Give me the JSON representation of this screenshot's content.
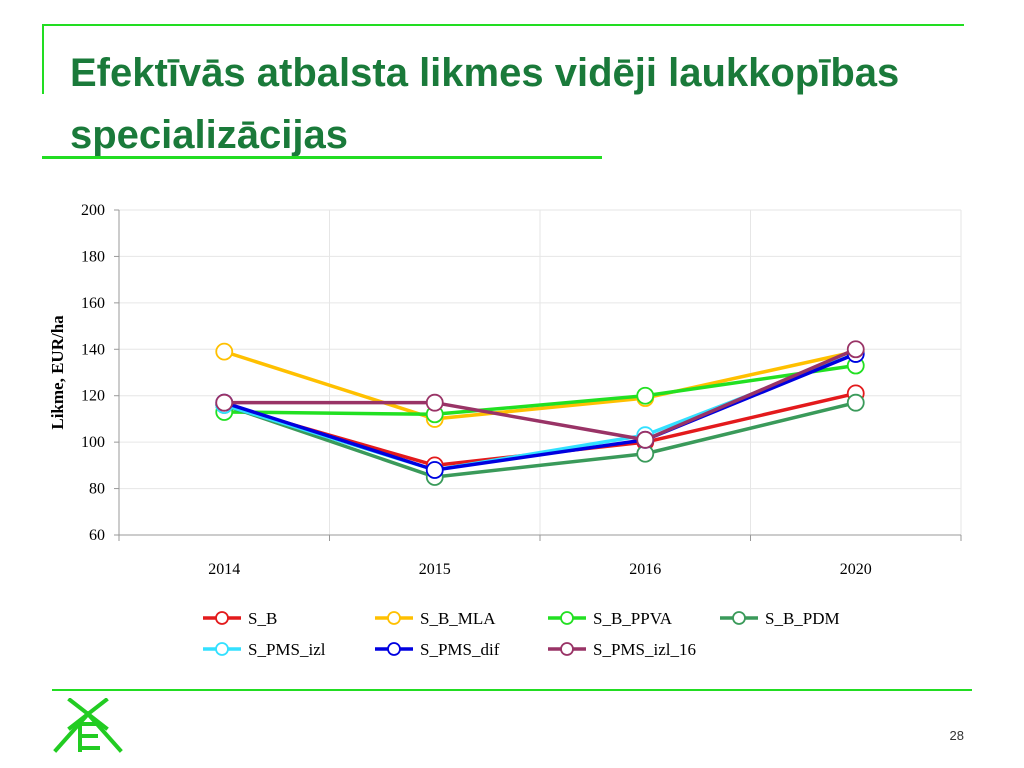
{
  "slide": {
    "title": "Efektīvās atbalsta likmes vidēji laukkopības specializācijas",
    "page_number": "28",
    "accent_color": "#22dd22",
    "title_color": "#1a7a3a"
  },
  "logo": {
    "icon": "xe-logo-icon",
    "color": "#22cc22"
  },
  "chart_data": {
    "type": "line",
    "title": "",
    "xlabel": "",
    "ylabel": "Likme, EUR/ha",
    "ylim": [
      60,
      200
    ],
    "yticks": [
      60,
      80,
      100,
      120,
      140,
      160,
      180,
      200
    ],
    "categories": [
      "2014",
      "2015",
      "2016",
      "2020"
    ],
    "grid": true,
    "legend_position": "bottom",
    "series": [
      {
        "name": "S_B",
        "color": "#e31a1c",
        "values": [
          116,
          90,
          100,
          121
        ]
      },
      {
        "name": "S_B_MLA",
        "color": "#ffc000",
        "values": [
          139,
          110,
          119,
          139
        ]
      },
      {
        "name": "S_B_PPVA",
        "color": "#22e022",
        "values": [
          113,
          112,
          120,
          133
        ]
      },
      {
        "name": "S_B_PDM",
        "color": "#3a9a5a",
        "values": [
          116,
          85,
          95,
          117
        ]
      },
      {
        "name": "S_PMS_izl",
        "color": "#33e0ff",
        "values": [
          116,
          88,
          103,
          138
        ]
      },
      {
        "name": "S_PMS_dif",
        "color": "#0000e0",
        "values": [
          117,
          88,
          101,
          138
        ]
      },
      {
        "name": "S_PMS_izl_16",
        "color": "#993366",
        "values": [
          117,
          117,
          101,
          140
        ]
      }
    ]
  }
}
